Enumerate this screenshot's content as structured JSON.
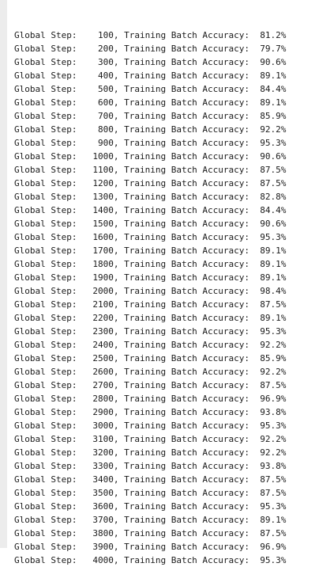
{
  "log": {
    "step_label": "Global Step:",
    "metric_label": "Training Batch Accuracy:",
    "separator": ",",
    "entries": [
      {
        "step": "100",
        "accuracy": "81.2%"
      },
      {
        "step": "200",
        "accuracy": "79.7%"
      },
      {
        "step": "300",
        "accuracy": "90.6%"
      },
      {
        "step": "400",
        "accuracy": "89.1%"
      },
      {
        "step": "500",
        "accuracy": "84.4%"
      },
      {
        "step": "600",
        "accuracy": "89.1%"
      },
      {
        "step": "700",
        "accuracy": "85.9%"
      },
      {
        "step": "800",
        "accuracy": "92.2%"
      },
      {
        "step": "900",
        "accuracy": "95.3%"
      },
      {
        "step": "1000",
        "accuracy": "90.6%"
      },
      {
        "step": "1100",
        "accuracy": "87.5%"
      },
      {
        "step": "1200",
        "accuracy": "87.5%"
      },
      {
        "step": "1300",
        "accuracy": "82.8%"
      },
      {
        "step": "1400",
        "accuracy": "84.4%"
      },
      {
        "step": "1500",
        "accuracy": "90.6%"
      },
      {
        "step": "1600",
        "accuracy": "95.3%"
      },
      {
        "step": "1700",
        "accuracy": "89.1%"
      },
      {
        "step": "1800",
        "accuracy": "89.1%"
      },
      {
        "step": "1900",
        "accuracy": "89.1%"
      },
      {
        "step": "2000",
        "accuracy": "98.4%"
      },
      {
        "step": "2100",
        "accuracy": "87.5%"
      },
      {
        "step": "2200",
        "accuracy": "89.1%"
      },
      {
        "step": "2300",
        "accuracy": "95.3%"
      },
      {
        "step": "2400",
        "accuracy": "92.2%"
      },
      {
        "step": "2500",
        "accuracy": "85.9%"
      },
      {
        "step": "2600",
        "accuracy": "92.2%"
      },
      {
        "step": "2700",
        "accuracy": "87.5%"
      },
      {
        "step": "2800",
        "accuracy": "96.9%"
      },
      {
        "step": "2900",
        "accuracy": "93.8%"
      },
      {
        "step": "3000",
        "accuracy": "95.3%"
      },
      {
        "step": "3100",
        "accuracy": "92.2%"
      },
      {
        "step": "3200",
        "accuracy": "92.2%"
      },
      {
        "step": "3300",
        "accuracy": "93.8%"
      },
      {
        "step": "3400",
        "accuracy": "87.5%"
      },
      {
        "step": "3500",
        "accuracy": "87.5%"
      },
      {
        "step": "3600",
        "accuracy": "95.3%"
      },
      {
        "step": "3700",
        "accuracy": "89.1%"
      },
      {
        "step": "3800",
        "accuracy": "87.5%"
      },
      {
        "step": "3900",
        "accuracy": "96.9%"
      },
      {
        "step": "4000",
        "accuracy": "95.3%"
      }
    ]
  }
}
